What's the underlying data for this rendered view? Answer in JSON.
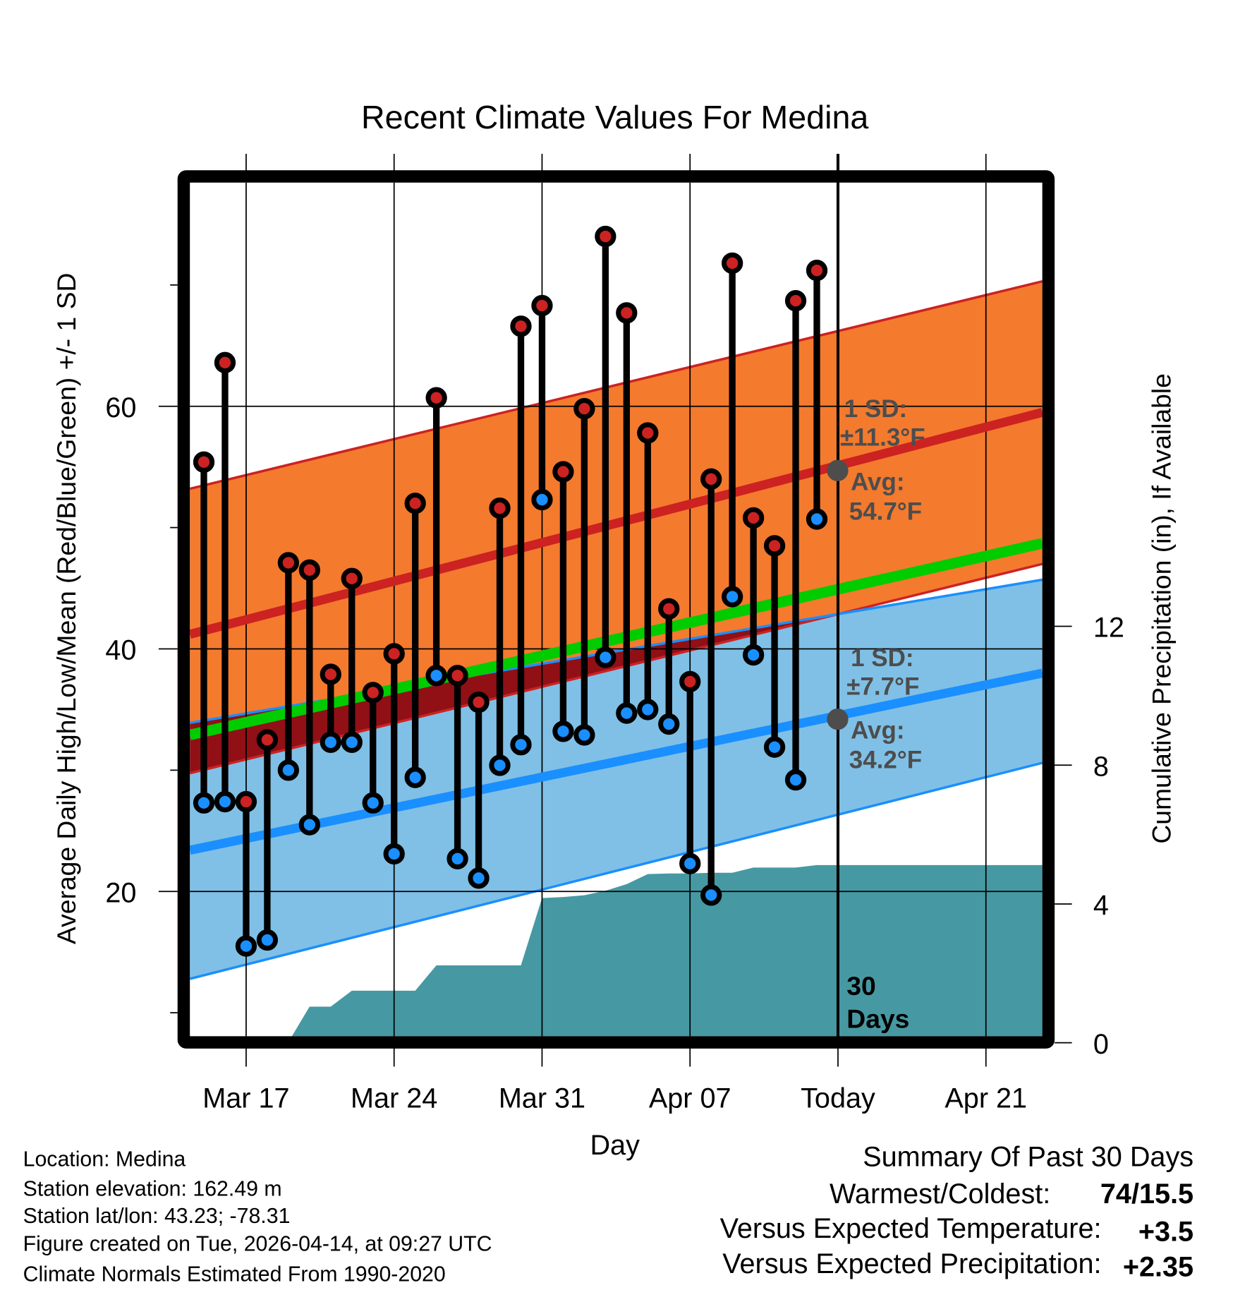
{
  "chart_data": {
    "type": "line",
    "title": "Recent Climate Values For Medina",
    "xlabel": "Day",
    "ylabel": "Average Daily High/Low/Mean (Red/Blue/Green) +/- 1 SD",
    "y2label": "Cumulative Precipitation (in), If Available",
    "ylim": [
      8,
      78.4
    ],
    "y2lim": [
      0,
      22
    ],
    "y_ticks": [
      20,
      40,
      60
    ],
    "y_tick_labels": [
      "20",
      "40",
      "60"
    ],
    "y2_ticks": [
      0,
      4,
      8,
      12
    ],
    "y2_tick_labels": [
      "0",
      "4",
      "8",
      "12"
    ],
    "x_tick_days": [
      2,
      9,
      16,
      23,
      30,
      37
    ],
    "x_tick_labels": [
      "Mar 17",
      "Mar 24",
      "Mar 31",
      "Apr 07",
      "Today",
      "Apr 21"
    ],
    "x_range_days": [
      -0.66,
      39.67
    ],
    "today_day": 30,
    "grid": true,
    "dates": [
      "Mar 15",
      "Mar 16",
      "Mar 17",
      "Mar 18",
      "Mar 19",
      "Mar 20",
      "Mar 21",
      "Mar 22",
      "Mar 23",
      "Mar 24",
      "Mar 25",
      "Mar 26",
      "Mar 27",
      "Mar 28",
      "Mar 29",
      "Mar 30",
      "Mar 31",
      "Apr 01",
      "Apr 02",
      "Apr 03",
      "Apr 04",
      "Apr 05",
      "Apr 06",
      "Apr 07",
      "Apr 08",
      "Apr 09",
      "Apr 10",
      "Apr 11",
      "Apr 12",
      "Apr 13"
    ],
    "series": [
      {
        "name": "Daily High",
        "color": "#cc2222",
        "values": [
          55.4,
          63.6,
          27.4,
          32.5,
          47.1,
          46.5,
          37.9,
          45.8,
          36.4,
          39.6,
          52.0,
          60.7,
          37.8,
          35.6,
          51.6,
          66.6,
          68.3,
          54.6,
          59.8,
          74.0,
          67.7,
          57.8,
          43.3,
          37.3,
          54.0,
          71.8,
          50.8,
          48.5,
          68.7,
          71.2
        ]
      },
      {
        "name": "Daily Low",
        "color": "#1a8fff",
        "values": [
          27.3,
          27.4,
          15.5,
          16.0,
          30.0,
          25.5,
          32.3,
          32.3,
          27.3,
          23.1,
          29.4,
          37.8,
          22.7,
          21.1,
          30.4,
          32.1,
          52.3,
          33.2,
          32.9,
          39.3,
          34.7,
          35.0,
          33.8,
          22.3,
          19.7,
          44.3,
          39.5,
          31.9,
          29.2,
          50.7
        ]
      },
      {
        "name": "Cumulative Precipitation (in)",
        "color": "#4699a3",
        "values": [
          0.01,
          0.01,
          0.02,
          0.02,
          0.02,
          1.04,
          1.04,
          1.5,
          1.5,
          1.5,
          1.5,
          2.23,
          2.23,
          2.23,
          2.23,
          2.23,
          4.17,
          4.2,
          4.25,
          4.38,
          4.57,
          4.86,
          4.88,
          4.88,
          4.9,
          4.9,
          5.05,
          5.05,
          5.05,
          5.12
        ]
      }
    ],
    "normals": {
      "high_avg": [
        41.2,
        59.5
      ],
      "high_upper": [
        53.2,
        70.3
      ],
      "high_lower": [
        29.75,
        47.0
      ],
      "low_avg": [
        23.4,
        38.0
      ],
      "low_upper": [
        33.9,
        45.7
      ],
      "low_lower": [
        12.8,
        30.6
      ],
      "mean_avg": [
        32.9,
        48.7
      ],
      "colors": {
        "high_band": "#f47a2e",
        "low_band": "#80c0e6",
        "overlap": "#901016",
        "high_line": "#cc2222",
        "low_line": "#1a8fff",
        "mean_line": "#00cc00"
      }
    },
    "annotations": {
      "high_sd_label": "1 SD:",
      "high_sd_value": "±11.3°F",
      "high_avg_label": "Avg:",
      "high_avg_value": "54.7°F",
      "high_avg_today": 54.7,
      "low_sd_label": "1 SD:",
      "low_sd_value": "±7.7°F",
      "low_avg_label": "Avg:",
      "low_avg_value": "34.2°F",
      "low_avg_today": 34.2,
      "days_line1": "30",
      "days_line2": "Days"
    }
  },
  "footer": {
    "location": "Location: Medina",
    "elevation": "Station elevation: 162.49 m",
    "latlon": "Station lat/lon: 43.23; -78.31",
    "created": "Figure created on Tue, 2026-04-14, at 09:27 UTC",
    "normals": "Climate Normals Estimated From 1990-2020"
  },
  "summary": {
    "title": "Summary Of Past 30 Days",
    "warmest_label": "Warmest/Coldest:",
    "warmest_value": "74/15.5",
    "temp_label": "Versus Expected Temperature:",
    "temp_value": "+3.5",
    "temp_color": "#cc2222",
    "precip_label": "Versus Expected Precipitation:",
    "precip_value": "+2.35",
    "precip_color": "#00cc00"
  }
}
